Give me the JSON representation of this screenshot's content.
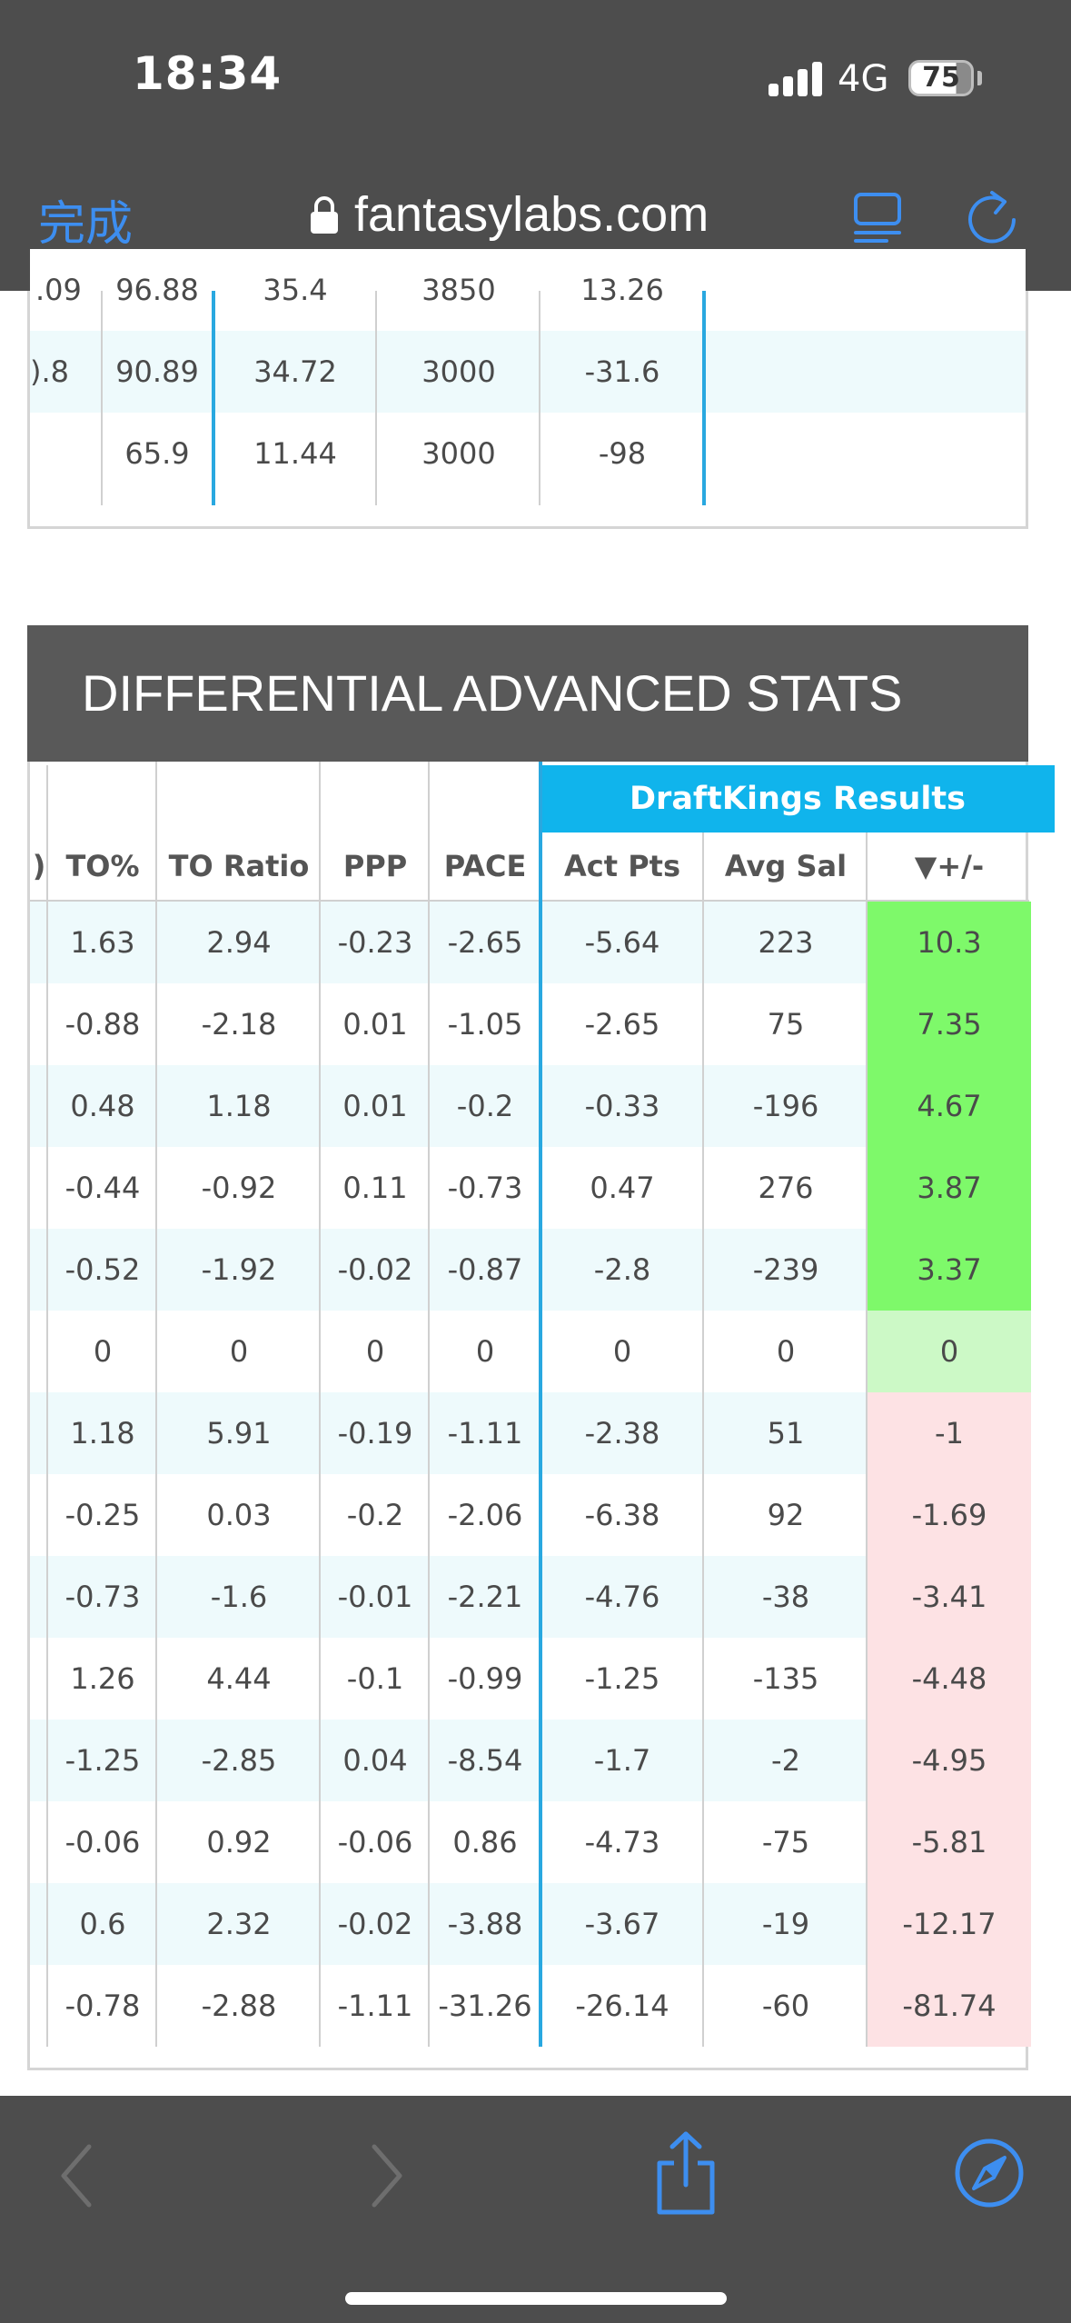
{
  "status_bar": {
    "time": "18:34",
    "network": "4G",
    "battery": "75"
  },
  "browser": {
    "done_label": "完成",
    "url": "fantasylabs.com",
    "accent_color": "#3d8ef0"
  },
  "top_table": {
    "rows": [
      [
        ".09",
        "96.88",
        "35.4",
        "3850",
        "13.26"
      ],
      [
        ").8",
        "90.89",
        "34.72",
        "3000",
        "-31.6"
      ],
      [
        "",
        "65.9",
        "11.44",
        "3000",
        "-98"
      ]
    ]
  },
  "differential": {
    "title": "DIFFERENTIAL ADVANCED STATS",
    "group_header": "DraftKings Results",
    "columns": [
      ")",
      "TO%",
      "TO Ratio",
      "PPP",
      "PACE",
      "Act Pts",
      "Avg Sal",
      "▼+/-"
    ],
    "rows": [
      [
        "1.63",
        "2.94",
        "-0.23",
        "-2.65",
        "-5.64",
        "223",
        "10.3"
      ],
      [
        "-0.88",
        "-2.18",
        "0.01",
        "-1.05",
        "-2.65",
        "75",
        "7.35"
      ],
      [
        "0.48",
        "1.18",
        "0.01",
        "-0.2",
        "-0.33",
        "-196",
        "4.67"
      ],
      [
        "-0.44",
        "-0.92",
        "0.11",
        "-0.73",
        "0.47",
        "276",
        "3.87"
      ],
      [
        "-0.52",
        "-1.92",
        "-0.02",
        "-0.87",
        "-2.8",
        "-239",
        "3.37"
      ],
      [
        "0",
        "0",
        "0",
        "0",
        "0",
        "0",
        "0"
      ],
      [
        "1.18",
        "5.91",
        "-0.19",
        "-1.11",
        "-2.38",
        "51",
        "-1"
      ],
      [
        "-0.25",
        "0.03",
        "-0.2",
        "-2.06",
        "-6.38",
        "92",
        "-1.69"
      ],
      [
        "-0.73",
        "-1.6",
        "-0.01",
        "-2.21",
        "-4.76",
        "-38",
        "-3.41"
      ],
      [
        "1.26",
        "4.44",
        "-0.1",
        "-0.99",
        "-1.25",
        "-135",
        "-4.48"
      ],
      [
        "-1.25",
        "-2.85",
        "0.04",
        "-8.54",
        "-1.7",
        "-2",
        "-4.95"
      ],
      [
        "-0.06",
        "0.92",
        "-0.06",
        "0.86",
        "-4.73",
        "-75",
        "-5.81"
      ],
      [
        "0.6",
        "2.32",
        "-0.02",
        "-3.88",
        "-3.67",
        "-19",
        "-12.17"
      ],
      [
        "-0.78",
        "-2.88",
        "-1.11",
        "-31.26",
        "-26.14",
        "-60",
        "-81.74"
      ]
    ],
    "colors": {
      "stripe": "#eefafc",
      "positive": "#7ef96a",
      "zero": "#ccf9c6",
      "negative": "#fde2e4",
      "group_header": "#10b4ec",
      "section_header": "#595959"
    }
  }
}
